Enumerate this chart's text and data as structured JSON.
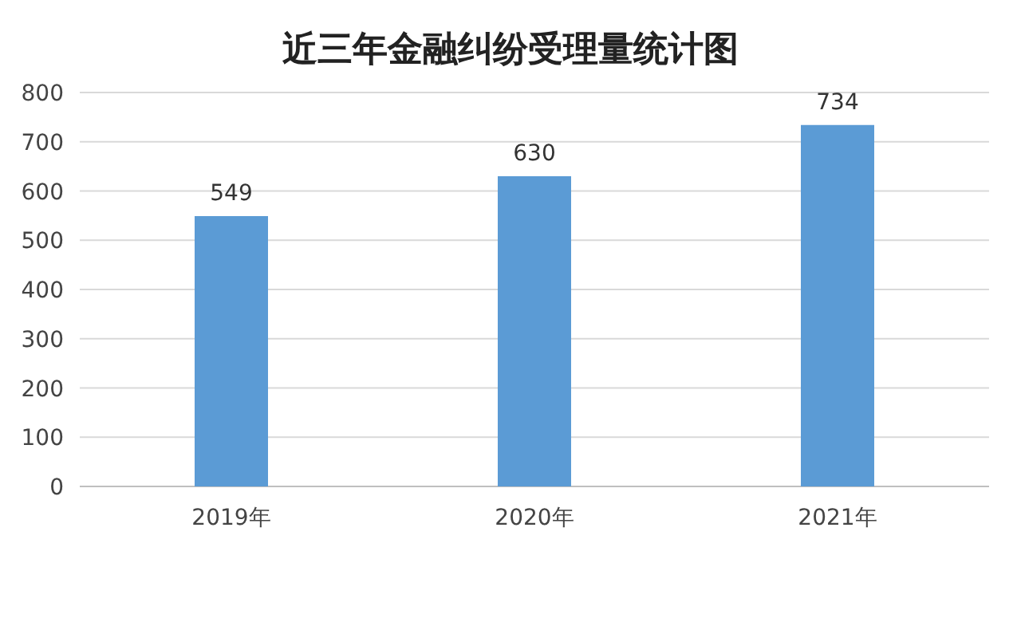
{
  "chart_data": {
    "type": "bar",
    "title": "近三年金融纠纷受理量统计图",
    "categories": [
      "2019年",
      "2020年",
      "2021年"
    ],
    "values": [
      549,
      630,
      734
    ],
    "color": "#5b9bd5",
    "ylim": [
      0,
      800
    ],
    "yticks": [
      0,
      100,
      200,
      300,
      400,
      500,
      600,
      700,
      800
    ],
    "grid": "y",
    "data_labels": true
  }
}
